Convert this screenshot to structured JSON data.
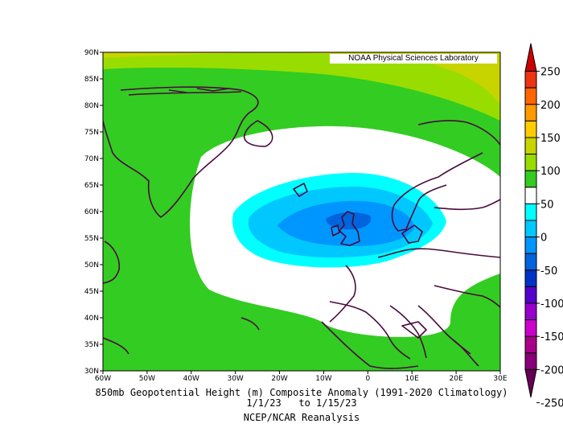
{
  "map": {
    "credit": "NOAA Physical Sciences Laboratory",
    "title_line1": "850mb Geopotential Height (m) Composite Anomaly (1991-2020 Climatology)",
    "title_line2": "1/1/23   to 1/15/23",
    "title_line3": "NCEP/NCAR Reanalysis",
    "lat_labels": [
      "90N",
      "85N",
      "80N",
      "75N",
      "70N",
      "65N",
      "60N",
      "55N",
      "50N",
      "45N",
      "40N",
      "35N",
      "30N"
    ],
    "lon_labels": [
      "60W",
      "50W",
      "40W",
      "30W",
      "20W",
      "10W",
      "0",
      "10E",
      "20E",
      "30E"
    ],
    "extent": {
      "lon_min": -60,
      "lon_max": 30,
      "lat_min": 30,
      "lat_max": 90
    },
    "colors": {
      "green": "#33cc22",
      "yellowgreen": "#99dd00",
      "olive": "#c8d400",
      "coast": "#4a0a3e"
    }
  },
  "colorbar": {
    "tick_labels": [
      "250",
      "200",
      "150",
      "100",
      "50",
      "0",
      "-50",
      "-100",
      "-150",
      "-200",
      "-250"
    ],
    "colors": [
      "#cc0000",
      "#ee3311",
      "#ff6600",
      "#ff9900",
      "#ffcc00",
      "#c8d400",
      "#99dd00",
      "#33cc22",
      "#ffffff",
      "#00ffff",
      "#00c8ff",
      "#0096ff",
      "#0064dc",
      "#0032c8",
      "#5500cc",
      "#9900cc",
      "#cc00cc",
      "#aa0088",
      "#880077",
      "#660055"
    ]
  }
}
